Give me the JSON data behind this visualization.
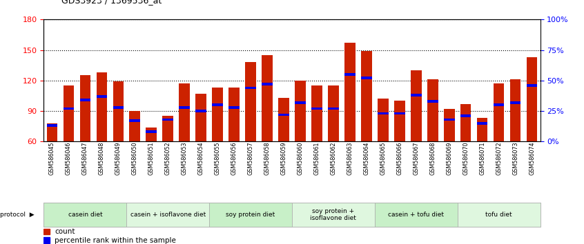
{
  "title": "GDS3923 / 1369536_at",
  "samples": [
    "GSM586045",
    "GSM586046",
    "GSM586047",
    "GSM586048",
    "GSM586049",
    "GSM586050",
    "GSM586051",
    "GSM586052",
    "GSM586053",
    "GSM586054",
    "GSM586055",
    "GSM586056",
    "GSM586057",
    "GSM586058",
    "GSM586059",
    "GSM586060",
    "GSM586061",
    "GSM586062",
    "GSM586063",
    "GSM586064",
    "GSM586065",
    "GSM586066",
    "GSM586067",
    "GSM586068",
    "GSM586069",
    "GSM586070",
    "GSM586071",
    "GSM586072",
    "GSM586073",
    "GSM586074"
  ],
  "counts": [
    78,
    115,
    125,
    128,
    119,
    90,
    74,
    85,
    117,
    107,
    113,
    113,
    138,
    145,
    103,
    120,
    115,
    115,
    157,
    149,
    102,
    100,
    130,
    121,
    92,
    97,
    83,
    117,
    121,
    143
  ],
  "percentile_ranks": [
    13,
    27,
    34,
    37,
    28,
    17,
    8,
    18,
    28,
    25,
    30,
    28,
    44,
    47,
    22,
    32,
    27,
    27,
    55,
    52,
    23,
    23,
    38,
    33,
    18,
    21,
    15,
    30,
    32,
    46
  ],
  "protocols": [
    {
      "label": "casein diet",
      "start": 0,
      "end": 5
    },
    {
      "label": "casein + isoflavone diet",
      "start": 5,
      "end": 10
    },
    {
      "label": "soy protein diet",
      "start": 10,
      "end": 15
    },
    {
      "label": "soy protein +\nisoflavone diet",
      "start": 15,
      "end": 20
    },
    {
      "label": "casein + tofu diet",
      "start": 20,
      "end": 25
    },
    {
      "label": "tofu diet",
      "start": 25,
      "end": 30
    }
  ],
  "protocol_colors": [
    "#c8f0c8",
    "#dff7df",
    "#c8f0c8",
    "#dff7df",
    "#c8f0c8",
    "#dff7df"
  ],
  "ylim": [
    60,
    180
  ],
  "yticks": [
    60,
    90,
    120,
    150,
    180
  ],
  "y2ticks_pct": [
    0,
    25,
    50,
    75,
    100
  ],
  "y2labels": [
    "0%",
    "25%",
    "50%",
    "75%",
    "100%"
  ],
  "bar_color": "#cc2200",
  "percentile_color": "#0000ee",
  "bar_width": 0.65,
  "ymin": 60,
  "ymax": 180
}
